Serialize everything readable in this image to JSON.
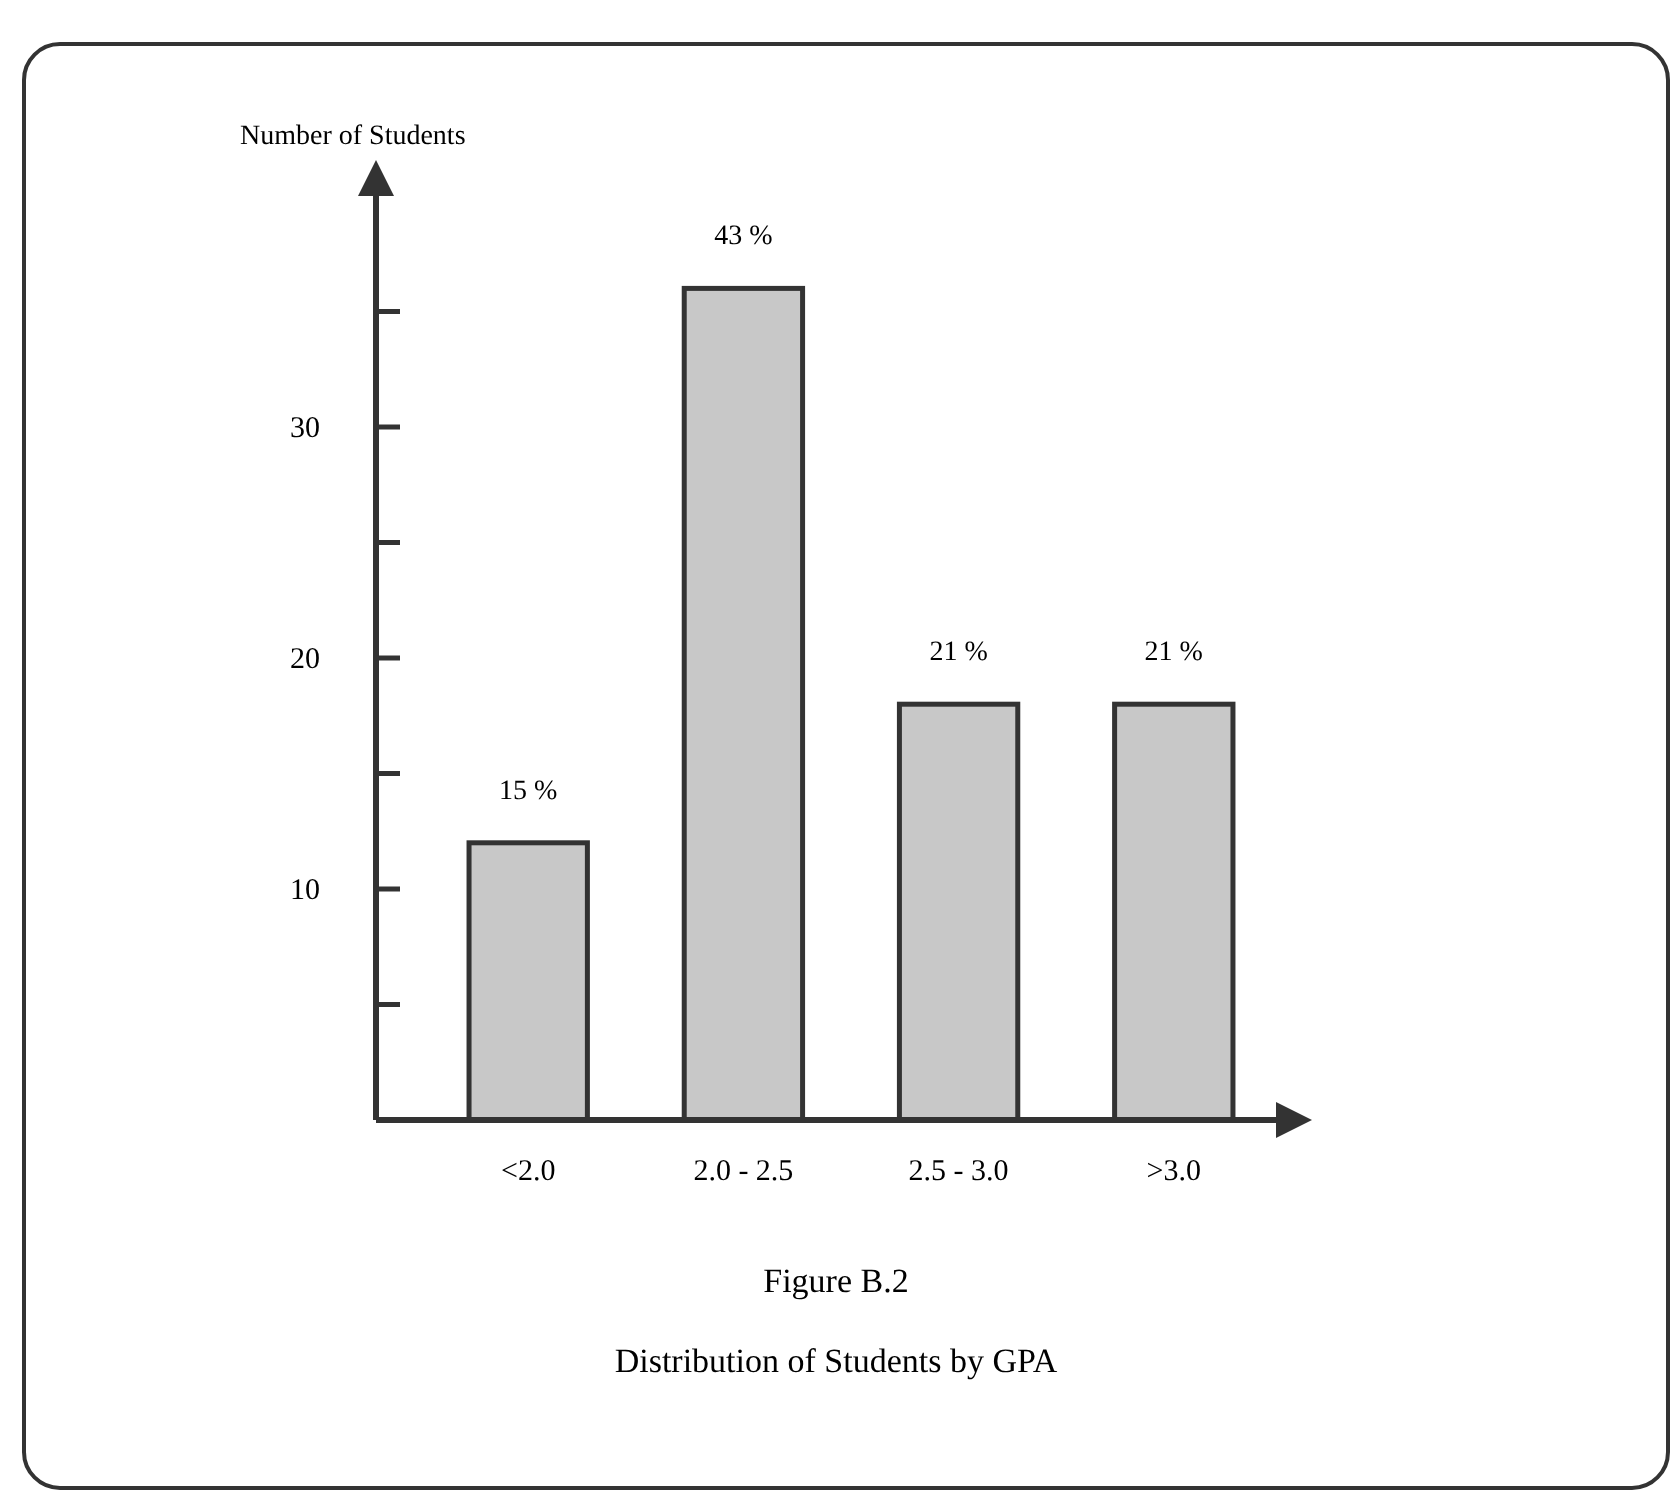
{
  "chart_data": {
    "type": "bar",
    "title": "Distribution of Students by GPA",
    "ylabel": "Number of Students",
    "categories": [
      "<2.0",
      "2.0 - 2.5",
      "2.5 - 3.0",
      ">3.0"
    ],
    "values": [
      12,
      36,
      18,
      18
    ],
    "color": "#c8c8c8",
    "ylim": [
      0,
      40
    ],
    "yticks": [
      {
        "value": 5,
        "label": null
      },
      10,
      {
        "value": 15,
        "label": null
      },
      20,
      {
        "value": 25,
        "label": null
      },
      30,
      {
        "value": 35,
        "label": null
      }
    ],
    "grid": false,
    "annotations": [
      {
        "text": "15 %",
        "x": "<2.0",
        "y": 12
      },
      {
        "text": "43 %",
        "x": "2.0 - 2.5",
        "y": 36
      },
      {
        "text": "21 %",
        "x": "2.5 - 3.0",
        "y": 18
      },
      {
        "text": "21 %",
        "x": ">3.0",
        "y": 18
      },
      "Figure B.2"
    ]
  }
}
